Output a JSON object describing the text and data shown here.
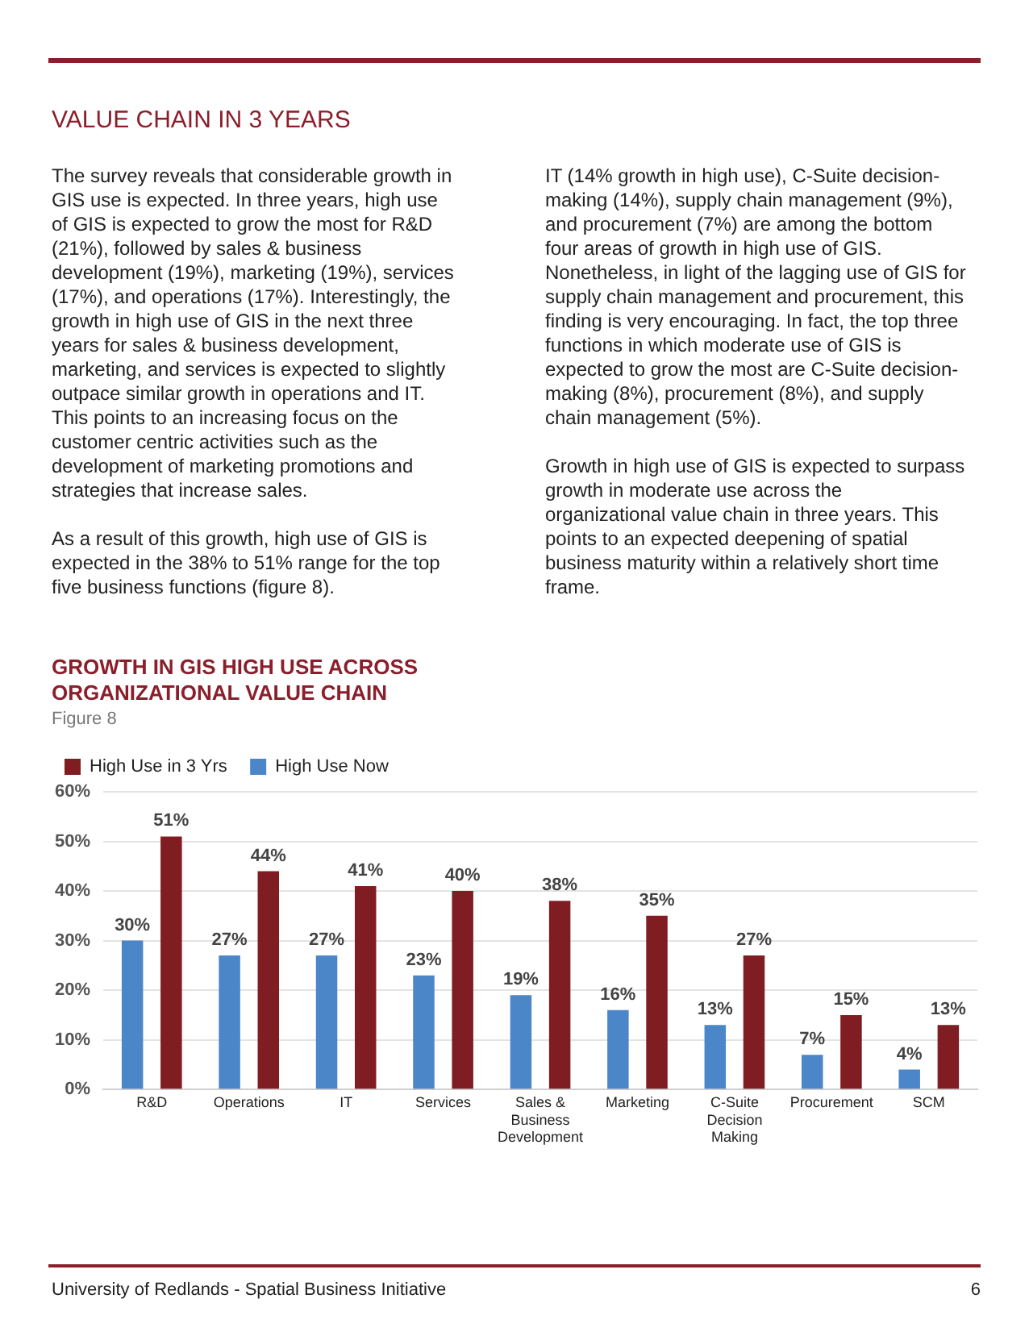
{
  "chart_data": {
    "type": "bar",
    "title": "GROWTH IN GIS HIGH USE ACROSS ORGANIZATIONAL VALUE CHAIN",
    "subtitle": "Figure 8",
    "categories": [
      "R&D",
      "Operations",
      "IT",
      "Services",
      "Sales & Business Development",
      "Marketing",
      "C-Suite Decision Making",
      "Procurement",
      "SCM"
    ],
    "series": [
      {
        "name": "High Use Now",
        "color": "#4a86c8",
        "values": [
          30,
          27,
          27,
          23,
          19,
          16,
          13,
          7,
          4
        ],
        "value_labels": [
          "30%",
          "27%",
          "27%",
          "23%",
          "19%",
          "16%",
          "13%",
          "7%",
          "4%"
        ]
      },
      {
        "name": "High Use in 3 Yrs",
        "color": "#7f1d22",
        "values": [
          51,
          44,
          41,
          40,
          38,
          35,
          27,
          15,
          13
        ],
        "value_labels": [
          "51%",
          "44%",
          "41%",
          "40%",
          "38%",
          "35%",
          "27%",
          "15%",
          "13%"
        ]
      }
    ],
    "ylim": [
      0,
      60
    ],
    "yticks": [
      {
        "value": 0,
        "label": "0%"
      },
      {
        "value": 10,
        "label": "10%"
      },
      {
        "value": 20,
        "label": "20%"
      },
      {
        "value": 30,
        "label": "30%"
      },
      {
        "value": 40,
        "label": "40%"
      },
      {
        "value": 50,
        "label": "50%"
      },
      {
        "value": 60,
        "label": "60%"
      }
    ],
    "grid": "y",
    "legend": "top left",
    "annotations": [
      "VALUE CHAIN IN 3 YEARS",
      "The survey reveals that considerable growth in GIS use is expected. In three years, high use of GIS is expected to grow the most for R&D (21%), followed by sales & business development (19%), marketing (19%), services (17%), and operations (17%). Interestingly, the growth in high use of GIS in the next three years for sales & business development, marketing, and services is expected to slightly outpace similar growth in operations and IT. This points to an increasing focus on the customer centric activities such as the development of marketing promotions and strategies that increase sales.",
      "As a result of this growth, high use of GIS is expected in the 38% to 51% range for the top five business functions (figure 8).",
      "IT (14% growth in high use), C-Suite decision-making (14%), supply chain management (9%), and procurement (7%) are among the bottom four areas of growth in high use of GIS. Nonetheless, in light of the lagging use of GIS for supply chain management and procurement, this finding is very encouraging. In fact, the top three functions in which moderate use of GIS is expected to grow the most are C-Suite decision-making (8%), procurement (8%), and supply chain management (5%).",
      "Growth in high use of GIS is expected to surpass growth in moderate use across the organizational value chain in three years. This points to an expected deepening of spatial business maturity within a relatively short time frame.",
      "University of Redlands - Spatial Business Initiative",
      "6"
    ]
  }
}
